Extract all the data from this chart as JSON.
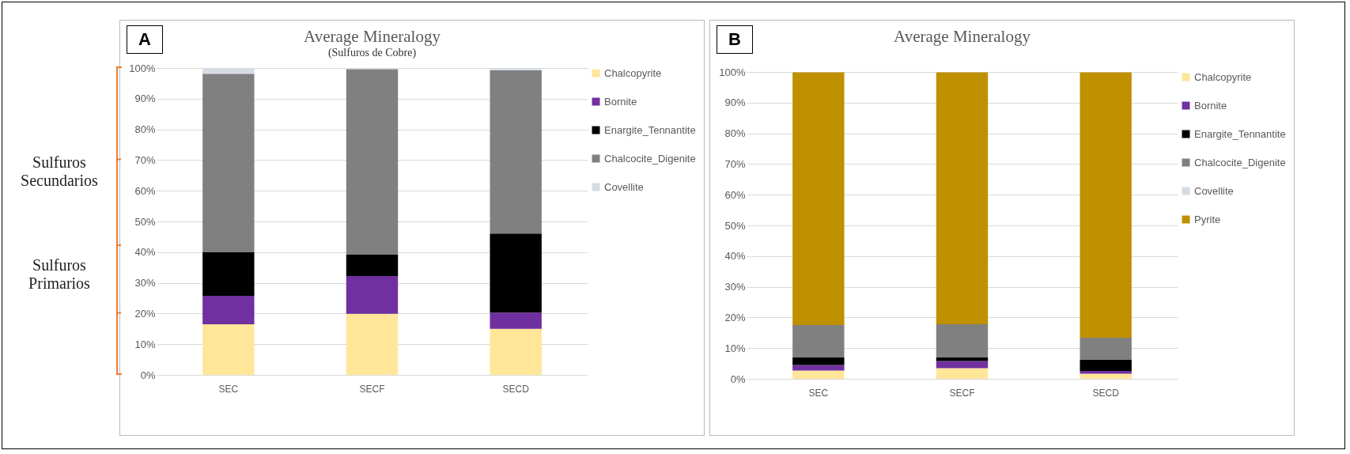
{
  "chart_data": [
    {
      "type": "bar",
      "title": "Average Mineralogy",
      "subtitle": "(Sulfuros de Cobre)",
      "categories": [
        "SEC",
        "SECF",
        "SECD"
      ],
      "stacked": true,
      "ylim": [
        0,
        100
      ],
      "yticks": [
        {
          "value": 0,
          "label": "0%"
        },
        {
          "value": 10,
          "label": "10%"
        },
        {
          "value": 20,
          "label": "20%"
        },
        {
          "value": 30,
          "label": "30%"
        },
        {
          "value": 40,
          "label": "40%"
        },
        {
          "value": 50,
          "label": "50%"
        },
        {
          "value": 60,
          "label": "60%"
        },
        {
          "value": 70,
          "label": "70%"
        },
        {
          "value": 80,
          "label": "80%"
        },
        {
          "value": 90,
          "label": "90%"
        },
        {
          "value": 100,
          "label": "100%"
        }
      ],
      "grid": "y",
      "legend": "right",
      "annotations": [
        "A",
        "Sulfuros Secundarios",
        "Sulfuros Primarios"
      ],
      "series": [
        {
          "name": "Chalcopyrite",
          "color": "#ffe699",
          "values": [
            16.5,
            19.9,
            15.0
          ]
        },
        {
          "name": "Bornite",
          "color": "#7030a0",
          "values": [
            9.3,
            12.3,
            5.3
          ]
        },
        {
          "name": "Enargite_Tennantite",
          "color": "#000000",
          "values": [
            14.3,
            7.0,
            25.8
          ]
        },
        {
          "name": "Chalcocite_Digenite",
          "color": "#808080",
          "values": [
            58.0,
            60.4,
            53.1
          ]
        },
        {
          "name": "Covellite",
          "color": "#d6dce4",
          "values": [
            1.9,
            null,
            0.8
          ]
        }
      ]
    },
    {
      "type": "bar",
      "title": "Average Mineralogy",
      "categories": [
        "SEC",
        "SECF",
        "SECD"
      ],
      "stacked": true,
      "ylim": [
        0,
        100
      ],
      "yticks": [
        {
          "value": 0,
          "label": "0%"
        },
        {
          "value": 10,
          "label": "10%"
        },
        {
          "value": 20,
          "label": "20%"
        },
        {
          "value": 30,
          "label": "30%"
        },
        {
          "value": 40,
          "label": "40%"
        },
        {
          "value": 50,
          "label": "50%"
        },
        {
          "value": 60,
          "label": "60%"
        },
        {
          "value": 70,
          "label": "70%"
        },
        {
          "value": 80,
          "label": "80%"
        },
        {
          "value": 90,
          "label": "90%"
        },
        {
          "value": 100,
          "label": "100%"
        }
      ],
      "grid": "y",
      "legend": "right",
      "annotations": [
        "B"
      ],
      "series": [
        {
          "name": "Chalcopyrite",
          "color": "#ffe699",
          "values": [
            2.7,
            3.5,
            1.7
          ]
        },
        {
          "name": "Bornite",
          "color": "#7030a0",
          "values": [
            1.8,
            2.3,
            0.9
          ]
        },
        {
          "name": "Enargite_Tennantite",
          "color": "#000000",
          "values": [
            2.6,
            1.3,
            3.6
          ]
        },
        {
          "name": "Chalcocite_Digenite",
          "color": "#808080",
          "values": [
            10.4,
            10.7,
            7.2
          ]
        },
        {
          "name": "Covellite",
          "color": "#d6dce4",
          "values": [
            null,
            null,
            null
          ]
        },
        {
          "name": "Pyrite",
          "color": "#bf9000",
          "values": [
            82.4,
            82.1,
            86.5
          ]
        }
      ]
    }
  ]
}
